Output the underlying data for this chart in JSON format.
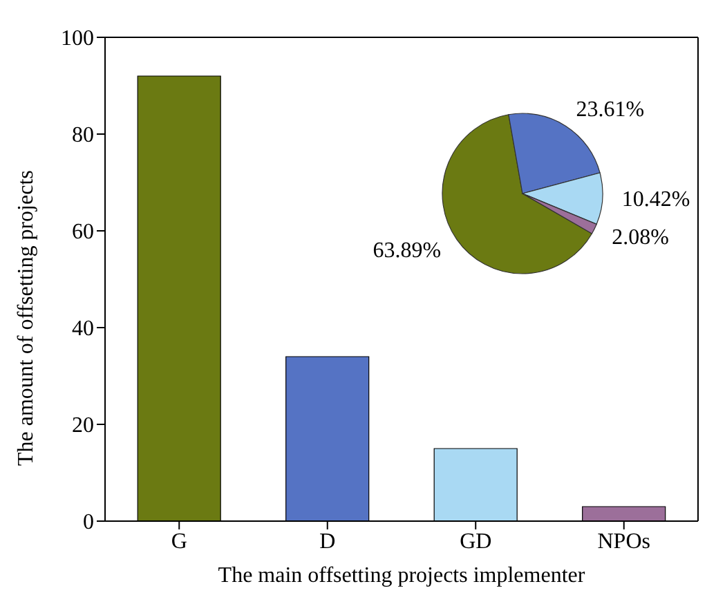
{
  "chart_data": [
    {
      "type": "bar",
      "xlabel": "The main offsetting projects implementer",
      "ylabel": "The amount of offsetting projects",
      "categories": [
        "G",
        "D",
        "GD",
        "NPOs"
      ],
      "values": [
        92,
        34,
        15,
        3
      ],
      "colors": [
        "#6b7a12",
        "#5573c4",
        "#a9d9f3",
        "#9c6f9a"
      ],
      "ylim": [
        0,
        100
      ],
      "yticks": [
        0,
        20,
        40,
        60,
        80,
        100
      ]
    },
    {
      "type": "pie",
      "categories": [
        null,
        null,
        null,
        null
      ],
      "values": [
        63.89,
        23.61,
        10.42,
        2.08
      ],
      "colors": [
        "#6b7a12",
        "#5573c4",
        "#a9d9f3",
        "#9c6f9a"
      ],
      "value_labels": [
        "63.89%",
        "23.61%",
        "10.42%",
        "2.08%"
      ]
    }
  ]
}
